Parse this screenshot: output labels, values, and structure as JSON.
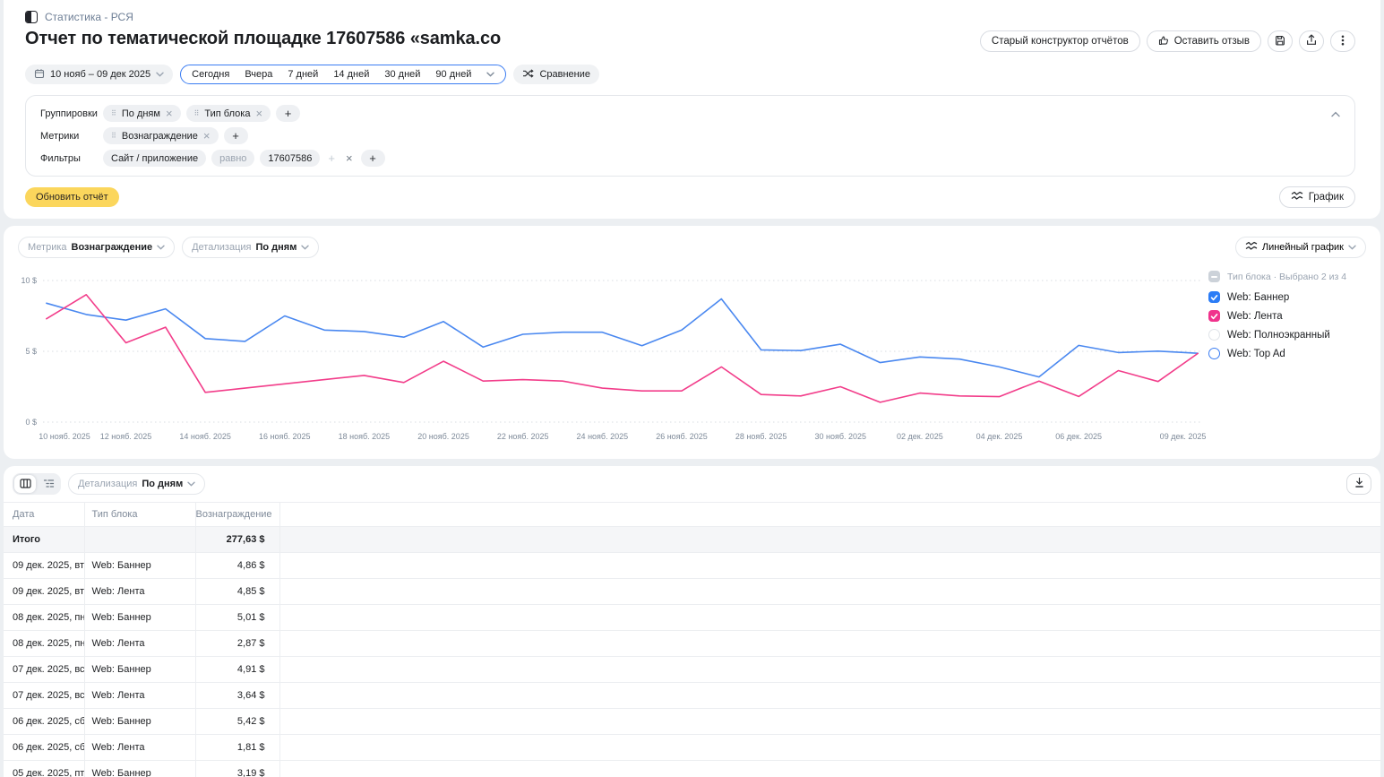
{
  "colors": {
    "page_bg": "#eceff2",
    "accent_yellow": "#fbd65c",
    "accent_blue": "#3b7df2",
    "line_blue": "#4a88f0",
    "line_pink": "#f23d8a"
  },
  "icons": {
    "app-logo-icon": "split-square",
    "calendar-icon": "calendar",
    "chevron-down-icon": "chevron-down",
    "chevron-up-icon": "chevron-up",
    "compare-icon": "shuffle-arrows",
    "thumbs-up-icon": "thumbs-up",
    "save-icon": "floppy-disk",
    "export-icon": "arrow-up-from-tray",
    "more-icon": "kebab-dots",
    "line-chart-icon": "double-zigzag",
    "drag-handle-icon": "six-dots",
    "plus-icon": "plus",
    "close-icon": "cross",
    "table-view-icon": "columns-grid",
    "pivot-view-icon": "tree-list",
    "download-icon": "arrow-down-to-line",
    "check-icon": "checkmark"
  },
  "header": {
    "breadcrumb": "Статистика - РСЯ",
    "title": "Отчет по тематической площадке 17607586 «samka.co",
    "actions": {
      "old_builder": "Старый конструктор отчётов",
      "feedback": "Оставить отзыв"
    }
  },
  "date_controls": {
    "range": "10 нояб – 09 дек 2025",
    "presets": [
      "Сегодня",
      "Вчера",
      "7 дней",
      "14 дней",
      "30 дней",
      "90 дней"
    ],
    "compare": "Сравнение"
  },
  "query_panel": {
    "groupings_label": "Группировки",
    "groupings": [
      "По дням",
      "Тип блока"
    ],
    "metrics_label": "Метрики",
    "metrics": [
      "Вознаграждение"
    ],
    "filters_label": "Фильтры",
    "filter": {
      "field": "Сайт / приложение",
      "op": "равно",
      "value": "17607586"
    }
  },
  "update_button": "Обновить отчёт",
  "chart_toggle": "График",
  "chart_controls": {
    "metric_label": "Метрика",
    "metric_value": "Вознаграждение",
    "detail_label": "Детализация",
    "detail_value": "По дням",
    "type_label": "Линейный график"
  },
  "legend": {
    "title": "Тип блока · Выбрано 2 из 4",
    "items": [
      {
        "label": "Web: Баннер",
        "state": "checked",
        "color": "#2b7cf6"
      },
      {
        "label": "Web: Лента",
        "state": "checked",
        "color": "#f0328c"
      },
      {
        "label": "Web: Полноэкранный",
        "state": "unchecked",
        "color": "#dfe3e8"
      },
      {
        "label": "Web: Top Ad",
        "state": "unchecked",
        "color": "#3b7df2"
      }
    ]
  },
  "chart_data": {
    "type": "line",
    "unit": "$",
    "ylim": [
      0,
      10
    ],
    "grid": "horizontal-dotted",
    "legend_position": "right",
    "yticks": [
      {
        "v": 0,
        "label": "0 $"
      },
      {
        "v": 5,
        "label": "5 $"
      },
      {
        "v": 10,
        "label": "10 $"
      }
    ],
    "x": [
      "10 нояб.",
      "11 нояб.",
      "12 нояб.",
      "13 нояб.",
      "14 нояб.",
      "15 нояб.",
      "16 нояб.",
      "17 нояб.",
      "18 нояб.",
      "19 нояб.",
      "20 нояб.",
      "21 нояб.",
      "22 нояб.",
      "23 нояб.",
      "24 нояб.",
      "25 нояб.",
      "26 нояб.",
      "27 нояб.",
      "28 нояб.",
      "29 нояб.",
      "30 нояб.",
      "01 дек.",
      "02 дек.",
      "03 дек.",
      "04 дек.",
      "05 дек.",
      "06 дек.",
      "07 дек.",
      "08 дек.",
      "09 дек."
    ],
    "xticks": [
      {
        "i": 0,
        "label": "10 нояб. 2025"
      },
      {
        "i": 2,
        "label": "12 нояб. 2025"
      },
      {
        "i": 4,
        "label": "14 нояб. 2025"
      },
      {
        "i": 6,
        "label": "16 нояб. 2025"
      },
      {
        "i": 8,
        "label": "18 нояб. 2025"
      },
      {
        "i": 10,
        "label": "20 нояб. 2025"
      },
      {
        "i": 12,
        "label": "22 нояб. 2025"
      },
      {
        "i": 14,
        "label": "24 нояб. 2025"
      },
      {
        "i": 16,
        "label": "26 нояб. 2025"
      },
      {
        "i": 18,
        "label": "28 нояб. 2025"
      },
      {
        "i": 20,
        "label": "30 нояб. 2025"
      },
      {
        "i": 22,
        "label": "02 дек. 2025"
      },
      {
        "i": 24,
        "label": "04 дек. 2025"
      },
      {
        "i": 26,
        "label": "06 дек. 2025"
      },
      {
        "i": 29,
        "label": "09 дек. 2025"
      }
    ],
    "series": [
      {
        "name": "Web: Баннер",
        "color": "#4a88f0",
        "values": [
          8.4,
          7.6,
          7.2,
          8.0,
          5.9,
          5.7,
          7.5,
          6.5,
          6.4,
          6.0,
          7.1,
          5.3,
          6.2,
          6.35,
          6.35,
          5.4,
          6.5,
          8.7,
          5.1,
          5.05,
          5.5,
          4.2,
          4.6,
          4.45,
          3.9,
          3.19,
          5.42,
          4.91,
          5.01,
          4.86
        ]
      },
      {
        "name": "Web: Лента",
        "color": "#f23d8a",
        "values": [
          7.3,
          9.0,
          5.6,
          6.7,
          2.1,
          2.4,
          2.7,
          3.0,
          3.3,
          2.8,
          4.3,
          2.9,
          3.0,
          2.9,
          2.4,
          2.2,
          2.2,
          3.9,
          1.95,
          1.85,
          2.5,
          1.4,
          2.05,
          1.85,
          1.8,
          2.9,
          1.81,
          3.64,
          2.87,
          4.85
        ]
      }
    ]
  },
  "table": {
    "detail_label": "Детализация",
    "detail_value": "По дням",
    "columns": [
      "Дата",
      "Тип блока",
      "Вознаграждение"
    ],
    "rows": [
      {
        "date": "Итого",
        "block": "",
        "value": "277,63 $",
        "total": true
      },
      {
        "date": "09 дек. 2025, вт",
        "block": "Web: Баннер",
        "value": "4,86 $"
      },
      {
        "date": "09 дек. 2025, вт",
        "block": "Web: Лента",
        "value": "4,85 $"
      },
      {
        "date": "08 дек. 2025, пн",
        "block": "Web: Баннер",
        "value": "5,01 $"
      },
      {
        "date": "08 дек. 2025, пн",
        "block": "Web: Лента",
        "value": "2,87 $"
      },
      {
        "date": "07 дек. 2025, вс",
        "block": "Web: Баннер",
        "value": "4,91 $"
      },
      {
        "date": "07 дек. 2025, вс",
        "block": "Web: Лента",
        "value": "3,64 $"
      },
      {
        "date": "06 дек. 2025, сб",
        "block": "Web: Баннер",
        "value": "5,42 $"
      },
      {
        "date": "06 дек. 2025, сб",
        "block": "Web: Лента",
        "value": "1,81 $"
      },
      {
        "date": "05 дек. 2025, пт",
        "block": "Web: Баннер",
        "value": "3,19 $"
      }
    ]
  }
}
